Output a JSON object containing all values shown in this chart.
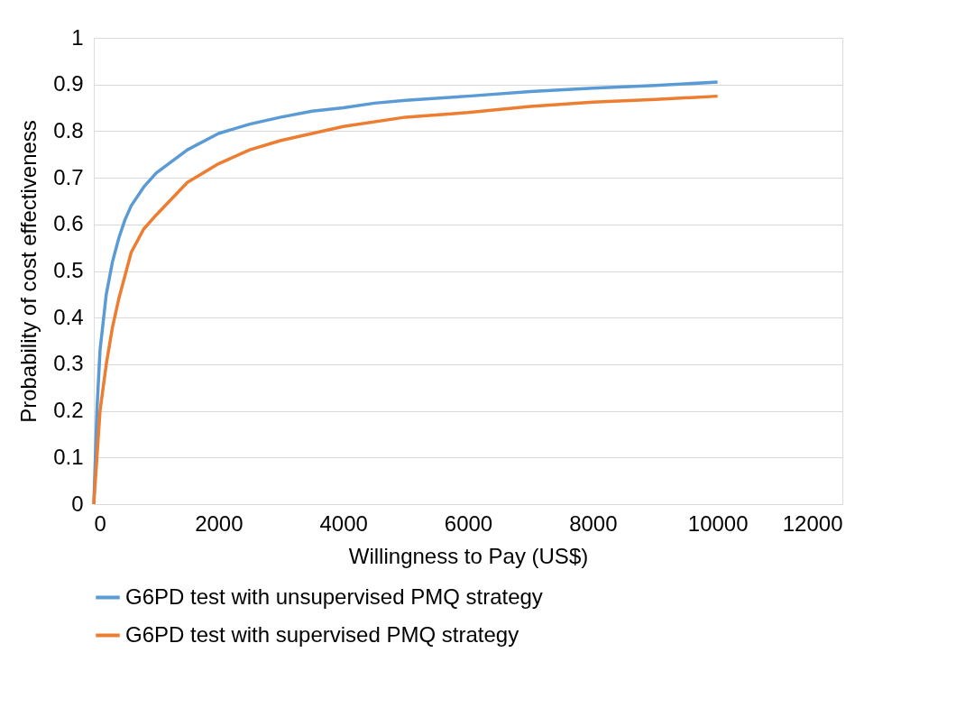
{
  "chart_data": {
    "type": "line",
    "xlabel": "Willingness to Pay (US$)",
    "ylabel": "Probability of cost effectiveness",
    "xlim": [
      0,
      12000
    ],
    "xticks": [
      0,
      2000,
      4000,
      6000,
      8000,
      10000,
      12000
    ],
    "ylim": [
      0,
      1
    ],
    "yticks": [
      0,
      0.1,
      0.2,
      0.3,
      0.4,
      0.5,
      0.6,
      0.7,
      0.8,
      0.9,
      1
    ],
    "grid": "y",
    "legend": "bottom",
    "marker": "none",
    "line_style": "solid",
    "series": [
      {
        "name": "G6PD test with unsupervised PMQ strategy",
        "color": "#5b9bd5",
        "x": [
          0,
          50,
          100,
          200,
          300,
          400,
          500,
          600,
          800,
          1000,
          1500,
          2000,
          2500,
          3000,
          3500,
          4000,
          4500,
          5000,
          6000,
          7000,
          8000,
          9000,
          10000
        ],
        "values": [
          0,
          0.2,
          0.33,
          0.45,
          0.52,
          0.57,
          0.61,
          0.64,
          0.68,
          0.71,
          0.76,
          0.795,
          0.815,
          0.83,
          0.843,
          0.85,
          0.86,
          0.866,
          0.875,
          0.885,
          0.892,
          0.898,
          0.905
        ]
      },
      {
        "name": "G6PD test with supervised PMQ strategy",
        "color": "#ed7d31",
        "x": [
          0,
          50,
          100,
          200,
          300,
          400,
          500,
          600,
          800,
          1000,
          1500,
          2000,
          2500,
          3000,
          3500,
          4000,
          5000,
          6000,
          7000,
          8000,
          9000,
          10000
        ],
        "values": [
          0,
          0.1,
          0.2,
          0.3,
          0.38,
          0.44,
          0.49,
          0.54,
          0.59,
          0.62,
          0.69,
          0.73,
          0.76,
          0.78,
          0.795,
          0.81,
          0.83,
          0.84,
          0.853,
          0.862,
          0.868,
          0.875
        ]
      }
    ]
  }
}
